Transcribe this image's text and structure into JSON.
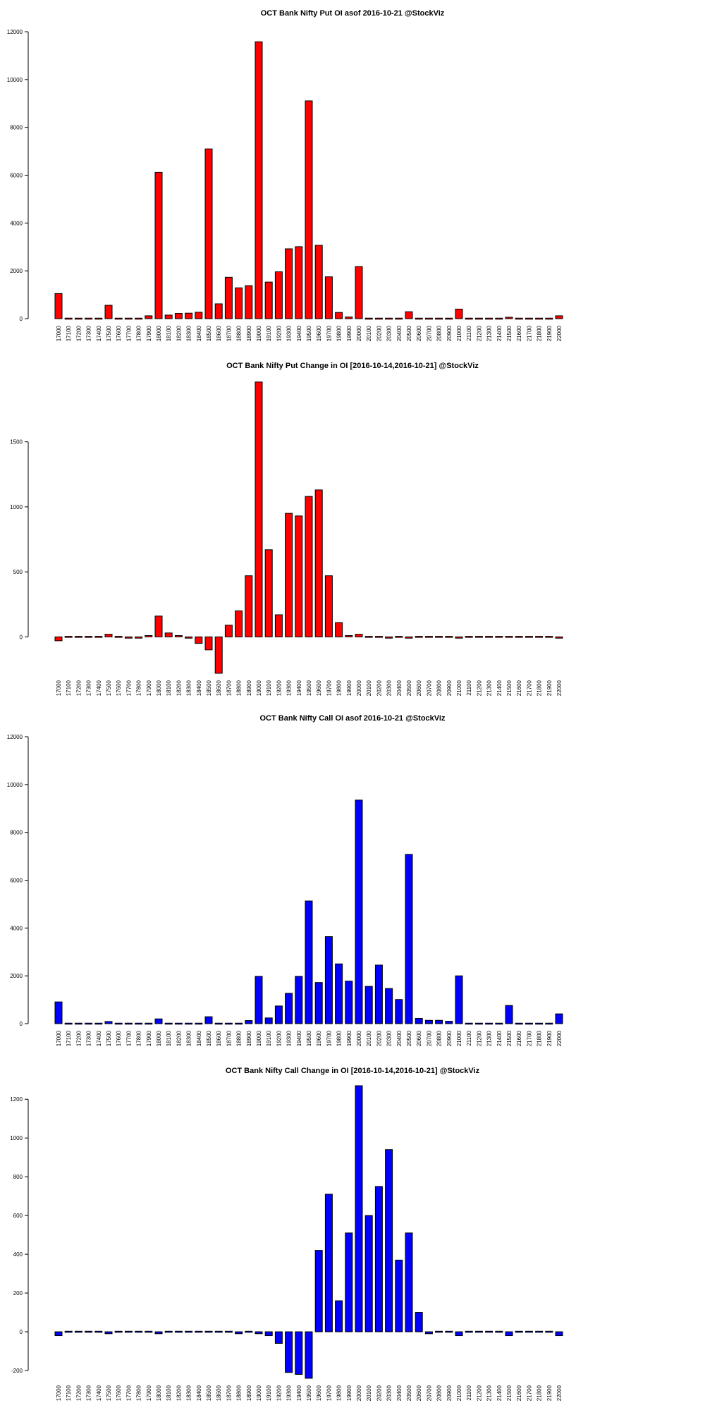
{
  "strikes": [
    "17000",
    "17100",
    "17200",
    "17300",
    "17400",
    "17500",
    "17600",
    "17700",
    "17800",
    "17900",
    "18000",
    "18100",
    "18200",
    "18300",
    "18400",
    "18500",
    "18600",
    "18700",
    "18800",
    "18900",
    "19000",
    "19100",
    "19200",
    "19300",
    "19400",
    "19500",
    "19600",
    "19700",
    "19800",
    "19900",
    "20000",
    "20100",
    "20200",
    "20300",
    "20400",
    "20500",
    "20600",
    "20700",
    "20800",
    "20900",
    "21000",
    "21100",
    "21200",
    "21300",
    "21400",
    "21500",
    "21600",
    "21700",
    "21800",
    "21900",
    "22000"
  ],
  "chart_data": [
    {
      "type": "bar",
      "title": "OCT Bank Nifty Put OI asof 2016-10-21 @StockViz",
      "color": "#ff0000",
      "ylim": [
        0,
        12000
      ],
      "yticks": [
        0,
        2000,
        4000,
        6000,
        8000,
        10000,
        12000
      ],
      "values": [
        1050,
        10,
        10,
        10,
        40,
        560,
        10,
        30,
        20,
        120,
        6120,
        150,
        220,
        230,
        270,
        7100,
        620,
        1730,
        1290,
        1380,
        11580,
        1530,
        1960,
        2920,
        3010,
        9110,
        3070,
        1750,
        260,
        70,
        2180,
        10,
        30,
        20,
        10,
        290,
        10,
        10,
        10,
        10,
        400,
        10,
        10,
        10,
        10,
        60,
        10,
        10,
        10,
        10,
        120
      ]
    },
    {
      "type": "bar",
      "title": "OCT Bank Nifty Put Change in OI [2016-10-14,2016-10-21] @StockViz",
      "color": "#ff0000",
      "ylim": [
        -280,
        1970
      ],
      "yticks": [
        0,
        500,
        1000,
        1500
      ],
      "values": [
        -30,
        0,
        0,
        0,
        0,
        20,
        0,
        -10,
        -10,
        10,
        160,
        30,
        10,
        -10,
        -50,
        -100,
        -280,
        90,
        200,
        470,
        1960,
        670,
        170,
        950,
        930,
        1080,
        1130,
        470,
        110,
        10,
        20,
        0,
        0,
        -10,
        0,
        -10,
        0,
        0,
        0,
        0,
        -10,
        0,
        0,
        0,
        0,
        0,
        0,
        0,
        0,
        0,
        -10
      ]
    },
    {
      "type": "bar",
      "title": "OCT Bank Nifty Call OI asof 2016-10-21 @StockViz",
      "color": "#0000ff",
      "ylim": [
        0,
        12000
      ],
      "yticks": [
        0,
        2000,
        4000,
        6000,
        8000,
        10000,
        12000
      ],
      "values": [
        910,
        10,
        10,
        10,
        10,
        90,
        10,
        10,
        10,
        20,
        200,
        10,
        10,
        10,
        10,
        290,
        40,
        40,
        40,
        130,
        1980,
        240,
        740,
        1270,
        1980,
        5130,
        1720,
        3640,
        2500,
        1780,
        9350,
        1560,
        2450,
        1470,
        1010,
        7080,
        220,
        140,
        140,
        100,
        2000,
        10,
        10,
        10,
        10,
        760,
        10,
        10,
        10,
        10,
        410
      ]
    },
    {
      "type": "bar",
      "title": "OCT Bank Nifty Call Change in OI [2016-10-14,2016-10-21] @StockViz",
      "color": "#0000ff",
      "ylim": [
        -240,
        1270
      ],
      "yticks": [
        -200,
        0,
        200,
        400,
        600,
        800,
        1000,
        1200
      ],
      "values": [
        -20,
        0,
        0,
        0,
        0,
        -10,
        0,
        0,
        0,
        0,
        -10,
        0,
        0,
        0,
        0,
        0,
        0,
        0,
        -10,
        0,
        -10,
        -20,
        -60,
        -210,
        -220,
        -240,
        420,
        710,
        160,
        510,
        1270,
        600,
        750,
        940,
        370,
        510,
        100,
        -10,
        0,
        0,
        -20,
        0,
        0,
        0,
        0,
        -20,
        0,
        0,
        0,
        0,
        -20
      ]
    }
  ]
}
